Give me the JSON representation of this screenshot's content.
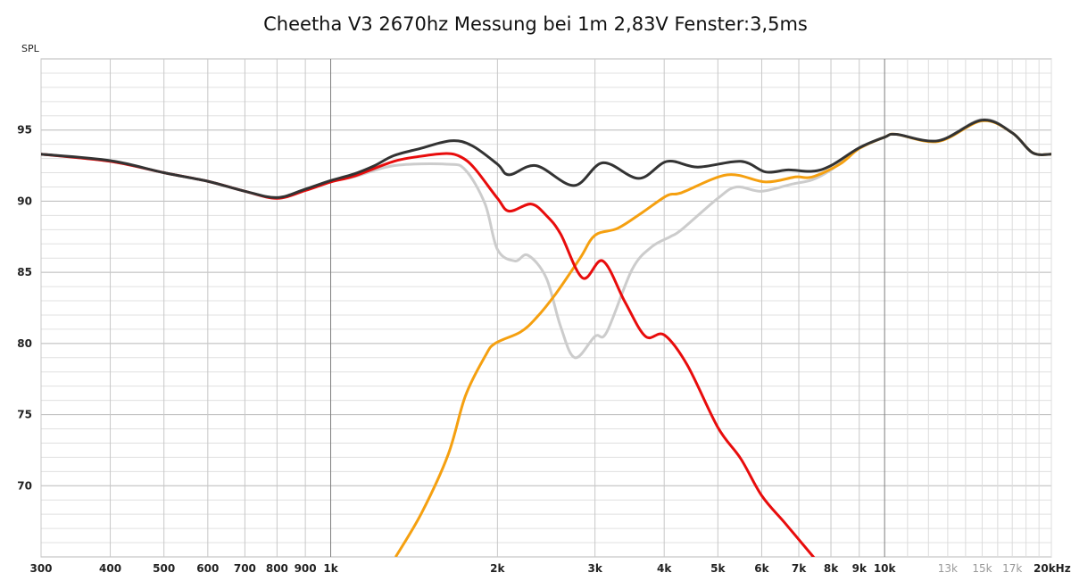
{
  "chart_data": {
    "type": "line",
    "title": "Cheetha V3 2670hz Messung bei 1m 2,83V Fenster:3,5ms",
    "ylabel": "SPL",
    "xlabel": "",
    "xscale": "log",
    "xlim": [
      300,
      20000
    ],
    "ylim": [
      65,
      100
    ],
    "grid": true,
    "y_ticks": [
      {
        "value": 70,
        "label": "70"
      },
      {
        "value": 75,
        "label": "75"
      },
      {
        "value": 80,
        "label": "80"
      },
      {
        "value": 85,
        "label": "85"
      },
      {
        "value": 90,
        "label": "90"
      },
      {
        "value": 95,
        "label": "95"
      }
    ],
    "x_ticks": [
      {
        "value": 300,
        "label": "300"
      },
      {
        "value": 400,
        "label": "400"
      },
      {
        "value": 500,
        "label": "500"
      },
      {
        "value": 600,
        "label": "600"
      },
      {
        "value": 700,
        "label": "700"
      },
      {
        "value": 800,
        "label": "800"
      },
      {
        "value": 900,
        "label": "900"
      },
      {
        "value": 1000,
        "label": "1k"
      },
      {
        "value": 2000,
        "label": "2k"
      },
      {
        "value": 3000,
        "label": "3k"
      },
      {
        "value": 4000,
        "label": "4k"
      },
      {
        "value": 5000,
        "label": "5k"
      },
      {
        "value": 6000,
        "label": "6k"
      },
      {
        "value": 7000,
        "label": "7k"
      },
      {
        "value": 8000,
        "label": "8k"
      },
      {
        "value": 9000,
        "label": "9k"
      },
      {
        "value": 10000,
        "label": "10k"
      },
      {
        "value": 13000,
        "label": "13k",
        "minor": true
      },
      {
        "value": 15000,
        "label": "15k",
        "minor": true
      },
      {
        "value": 17000,
        "label": "17k",
        "minor": true
      },
      {
        "value": 20000,
        "label": "20kHz"
      }
    ],
    "series": [
      {
        "name": "grey",
        "color": "#cccccc",
        "points": [
          [
            300,
            93.3
          ],
          [
            400,
            92.8
          ],
          [
            500,
            92.0
          ],
          [
            600,
            91.4
          ],
          [
            700,
            90.7
          ],
          [
            800,
            90.25
          ],
          [
            900,
            90.8
          ],
          [
            1000,
            91.4
          ],
          [
            1100,
            91.7
          ],
          [
            1300,
            92.5
          ],
          [
            1620,
            92.6
          ],
          [
            1750,
            92.2
          ],
          [
            1900,
            89.8
          ],
          [
            2000,
            86.6
          ],
          [
            2150,
            85.8
          ],
          [
            2270,
            86.2
          ],
          [
            2450,
            84.6
          ],
          [
            2600,
            81.2
          ],
          [
            2760,
            79.0
          ],
          [
            3000,
            80.5
          ],
          [
            3150,
            80.8
          ],
          [
            3500,
            85.2
          ],
          [
            3800,
            86.8
          ],
          [
            4100,
            87.5
          ],
          [
            4300,
            88.0
          ],
          [
            5000,
            90.2
          ],
          [
            5400,
            91.0
          ],
          [
            6000,
            90.7
          ],
          [
            6800,
            91.2
          ],
          [
            7400,
            91.5
          ],
          [
            8000,
            92.2
          ],
          [
            9000,
            93.7
          ],
          [
            10000,
            94.5
          ],
          [
            10500,
            94.7
          ],
          [
            12500,
            94.25
          ],
          [
            15000,
            95.75
          ],
          [
            17000,
            94.8
          ],
          [
            18500,
            93.4
          ],
          [
            20000,
            93.3
          ]
        ]
      },
      {
        "name": "orange",
        "color": "#f5a010",
        "points": [
          [
            1310,
            65.0
          ],
          [
            1460,
            68.1
          ],
          [
            1630,
            72.2
          ],
          [
            1750,
            76.3
          ],
          [
            1900,
            79.1
          ],
          [
            1980,
            80.0
          ],
          [
            2200,
            80.8
          ],
          [
            2350,
            81.8
          ],
          [
            2550,
            83.5
          ],
          [
            2820,
            86.0
          ],
          [
            3000,
            87.6
          ],
          [
            3300,
            88.1
          ],
          [
            3650,
            89.2
          ],
          [
            4050,
            90.4
          ],
          [
            4300,
            90.6
          ],
          [
            5200,
            91.85
          ],
          [
            6100,
            91.35
          ],
          [
            6900,
            91.7
          ],
          [
            7400,
            91.7
          ],
          [
            8300,
            92.6
          ],
          [
            9000,
            93.7
          ],
          [
            10000,
            94.5
          ],
          [
            10500,
            94.7
          ],
          [
            12500,
            94.2
          ],
          [
            15000,
            95.65
          ],
          [
            17000,
            94.8
          ],
          [
            18500,
            93.4
          ],
          [
            20000,
            93.3
          ]
        ]
      },
      {
        "name": "red",
        "color": "#e80c0c",
        "points": [
          [
            300,
            93.3
          ],
          [
            400,
            92.8
          ],
          [
            500,
            92.0
          ],
          [
            600,
            91.4
          ],
          [
            700,
            90.7
          ],
          [
            800,
            90.2
          ],
          [
            900,
            90.75
          ],
          [
            1000,
            91.35
          ],
          [
            1100,
            91.75
          ],
          [
            1300,
            92.8
          ],
          [
            1450,
            93.15
          ],
          [
            1620,
            93.35
          ],
          [
            1720,
            93.1
          ],
          [
            1820,
            92.3
          ],
          [
            2000,
            90.2
          ],
          [
            2100,
            89.3
          ],
          [
            2300,
            89.8
          ],
          [
            2450,
            89.0
          ],
          [
            2600,
            87.7
          ],
          [
            2850,
            84.6
          ],
          [
            3100,
            85.8
          ],
          [
            3400,
            82.9
          ],
          [
            3700,
            80.5
          ],
          [
            4000,
            80.6
          ],
          [
            4400,
            78.5
          ],
          [
            5000,
            74.1
          ],
          [
            5500,
            71.9
          ],
          [
            6000,
            69.3
          ],
          [
            6600,
            67.4
          ],
          [
            7400,
            65.1
          ],
          [
            7500,
            64.8
          ]
        ]
      },
      {
        "name": "black",
        "color": "#333333",
        "points": [
          [
            300,
            93.3
          ],
          [
            400,
            92.85
          ],
          [
            500,
            92.0
          ],
          [
            600,
            91.4
          ],
          [
            700,
            90.7
          ],
          [
            800,
            90.25
          ],
          [
            900,
            90.85
          ],
          [
            1000,
            91.45
          ],
          [
            1100,
            91.9
          ],
          [
            1200,
            92.5
          ],
          [
            1300,
            93.2
          ],
          [
            1450,
            93.7
          ],
          [
            1650,
            94.25
          ],
          [
            1800,
            93.9
          ],
          [
            2000,
            92.6
          ],
          [
            2100,
            91.85
          ],
          [
            2350,
            92.5
          ],
          [
            2750,
            91.1
          ],
          [
            3100,
            92.7
          ],
          [
            3600,
            91.6
          ],
          [
            4050,
            92.8
          ],
          [
            4600,
            92.4
          ],
          [
            5500,
            92.8
          ],
          [
            6100,
            92.05
          ],
          [
            6700,
            92.2
          ],
          [
            7400,
            92.1
          ],
          [
            8000,
            92.5
          ],
          [
            9000,
            93.75
          ],
          [
            10000,
            94.5
          ],
          [
            10500,
            94.7
          ],
          [
            12500,
            94.25
          ],
          [
            15000,
            95.7
          ],
          [
            17000,
            94.8
          ],
          [
            18500,
            93.4
          ],
          [
            20000,
            93.3
          ]
        ]
      }
    ]
  }
}
